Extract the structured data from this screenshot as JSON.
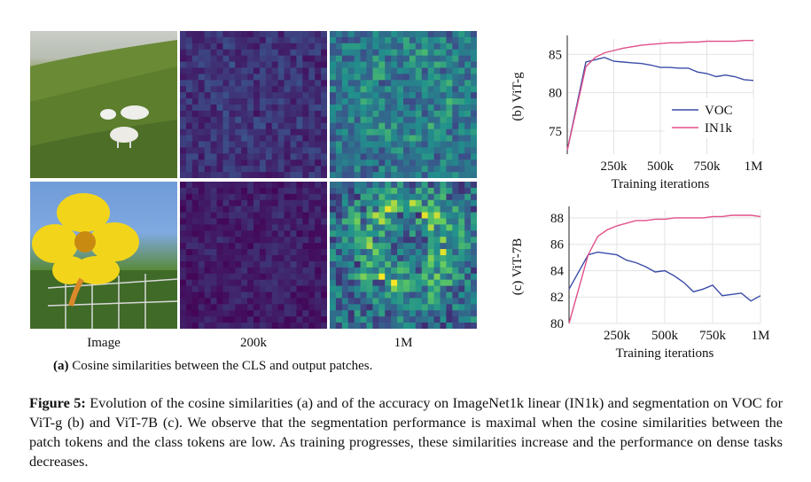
{
  "figure": {
    "left_panel": {
      "column_labels": [
        "Image",
        "200k",
        "1M"
      ],
      "subcaption_tag": "(a)",
      "subcaption_text": "Cosine similarities between the CLS and output patches."
    },
    "caption": {
      "label": "Figure 5:",
      "text": "Evolution of the cosine similarities (a) and of the accuracy on ImageNet1k linear (IN1k) and segmentation on VOC for ViT-g (b) and ViT-7B (c). We observe that the segmentation performance is maximal when the cosine similarities between the patch tokens and the class tokens are low. As training progresses, these similarities increase and the performance on dense tasks decreases."
    }
  },
  "colors": {
    "voc": "#3b4ca8",
    "in1k": "#e0508a",
    "heat_low": "#440154",
    "heat_high": "#b5de2b"
  },
  "chart_data": [
    {
      "type": "line",
      "ylabel": "(b) ViT-g",
      "xlabel": "Training iterations",
      "x_tick_labels": [
        "250k",
        "500k",
        "750k",
        "1M"
      ],
      "x_ticks": [
        250000,
        500000,
        750000,
        1000000
      ],
      "y_ticks": [
        75,
        80,
        85
      ],
      "xlim": [
        0,
        1000000
      ],
      "ylim": [
        72,
        87
      ],
      "legend": "bottom-right",
      "series": [
        {
          "name": "VOC",
          "color": "#3b4ca8",
          "x": [
            0,
            100000,
            150000,
            200000,
            250000,
            300000,
            350000,
            400000,
            450000,
            500000,
            550000,
            600000,
            650000,
            700000,
            750000,
            800000,
            850000,
            900000,
            950000,
            1000000
          ],
          "y": [
            72.5,
            84.0,
            84.3,
            84.6,
            84.1,
            84.0,
            83.9,
            83.8,
            83.6,
            83.3,
            83.3,
            83.2,
            83.2,
            82.7,
            82.5,
            82.1,
            82.3,
            82.1,
            81.7,
            81.6
          ]
        },
        {
          "name": "IN1k",
          "color": "#e0508a",
          "x": [
            0,
            100000,
            150000,
            200000,
            250000,
            300000,
            350000,
            400000,
            450000,
            500000,
            550000,
            600000,
            650000,
            700000,
            750000,
            800000,
            850000,
            900000,
            950000,
            1000000
          ],
          "y": [
            72.5,
            83.4,
            84.6,
            85.2,
            85.5,
            85.8,
            86.0,
            86.2,
            86.3,
            86.4,
            86.5,
            86.5,
            86.6,
            86.6,
            86.7,
            86.7,
            86.7,
            86.7,
            86.8,
            86.8
          ]
        }
      ]
    },
    {
      "type": "line",
      "ylabel": "(c) ViT-7B",
      "xlabel": "Training iterations",
      "x_tick_labels": [
        "250k",
        "500k",
        "750k",
        "1M"
      ],
      "x_ticks": [
        250000,
        500000,
        750000,
        1000000
      ],
      "y_ticks": [
        80,
        82,
        84,
        86,
        88
      ],
      "xlim": [
        0,
        1000000
      ],
      "ylim": [
        80,
        88.6
      ],
      "legend": "none",
      "series": [
        {
          "name": "VOC",
          "color": "#3b4ca8",
          "x": [
            0,
            100000,
            150000,
            200000,
            250000,
            300000,
            350000,
            400000,
            450000,
            500000,
            550000,
            600000,
            650000,
            700000,
            750000,
            800000,
            850000,
            900000,
            950000,
            1000000
          ],
          "y": [
            82.6,
            85.2,
            85.4,
            85.3,
            85.2,
            84.8,
            84.6,
            84.3,
            83.9,
            84.0,
            83.6,
            83.1,
            82.4,
            82.6,
            82.9,
            82.1,
            82.2,
            82.3,
            81.7,
            82.1
          ]
        },
        {
          "name": "IN1k",
          "color": "#e0508a",
          "x": [
            0,
            100000,
            150000,
            200000,
            250000,
            300000,
            350000,
            400000,
            450000,
            500000,
            550000,
            600000,
            650000,
            700000,
            750000,
            800000,
            850000,
            900000,
            950000,
            1000000
          ],
          "y": [
            80.0,
            85.2,
            86.6,
            87.1,
            87.4,
            87.6,
            87.8,
            87.8,
            87.9,
            87.9,
            88.0,
            88.0,
            88.0,
            88.0,
            88.1,
            88.1,
            88.2,
            88.2,
            88.2,
            88.1
          ]
        }
      ]
    }
  ]
}
